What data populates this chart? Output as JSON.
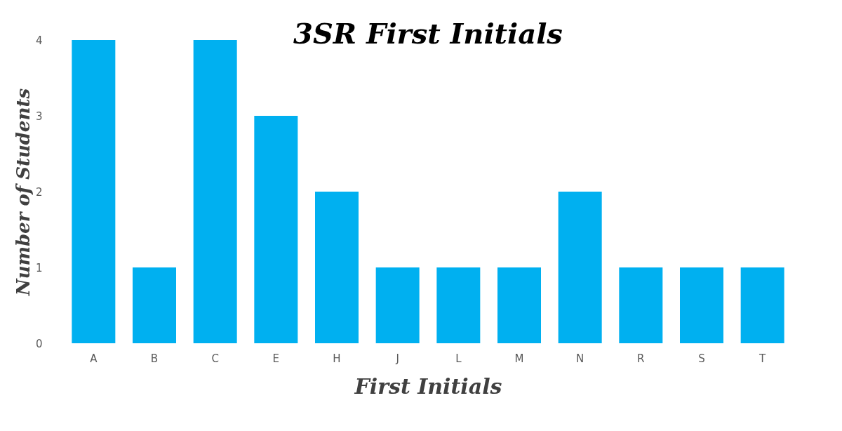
{
  "chart_data": {
    "type": "bar",
    "title": "3SR First Initials",
    "xlabel": "First Initials",
    "ylabel": "Number of Students",
    "categories": [
      "A",
      "B",
      "C",
      "E",
      "H",
      "J",
      "L",
      "M",
      "N",
      "R",
      "S",
      "T"
    ],
    "values": [
      4,
      1,
      4,
      3,
      2,
      1,
      1,
      1,
      2,
      1,
      1,
      1
    ],
    "color": "#00b0f0",
    "ylim": [
      0,
      4
    ],
    "yticks": [
      0,
      1,
      2,
      3,
      4
    ],
    "grid": false
  }
}
